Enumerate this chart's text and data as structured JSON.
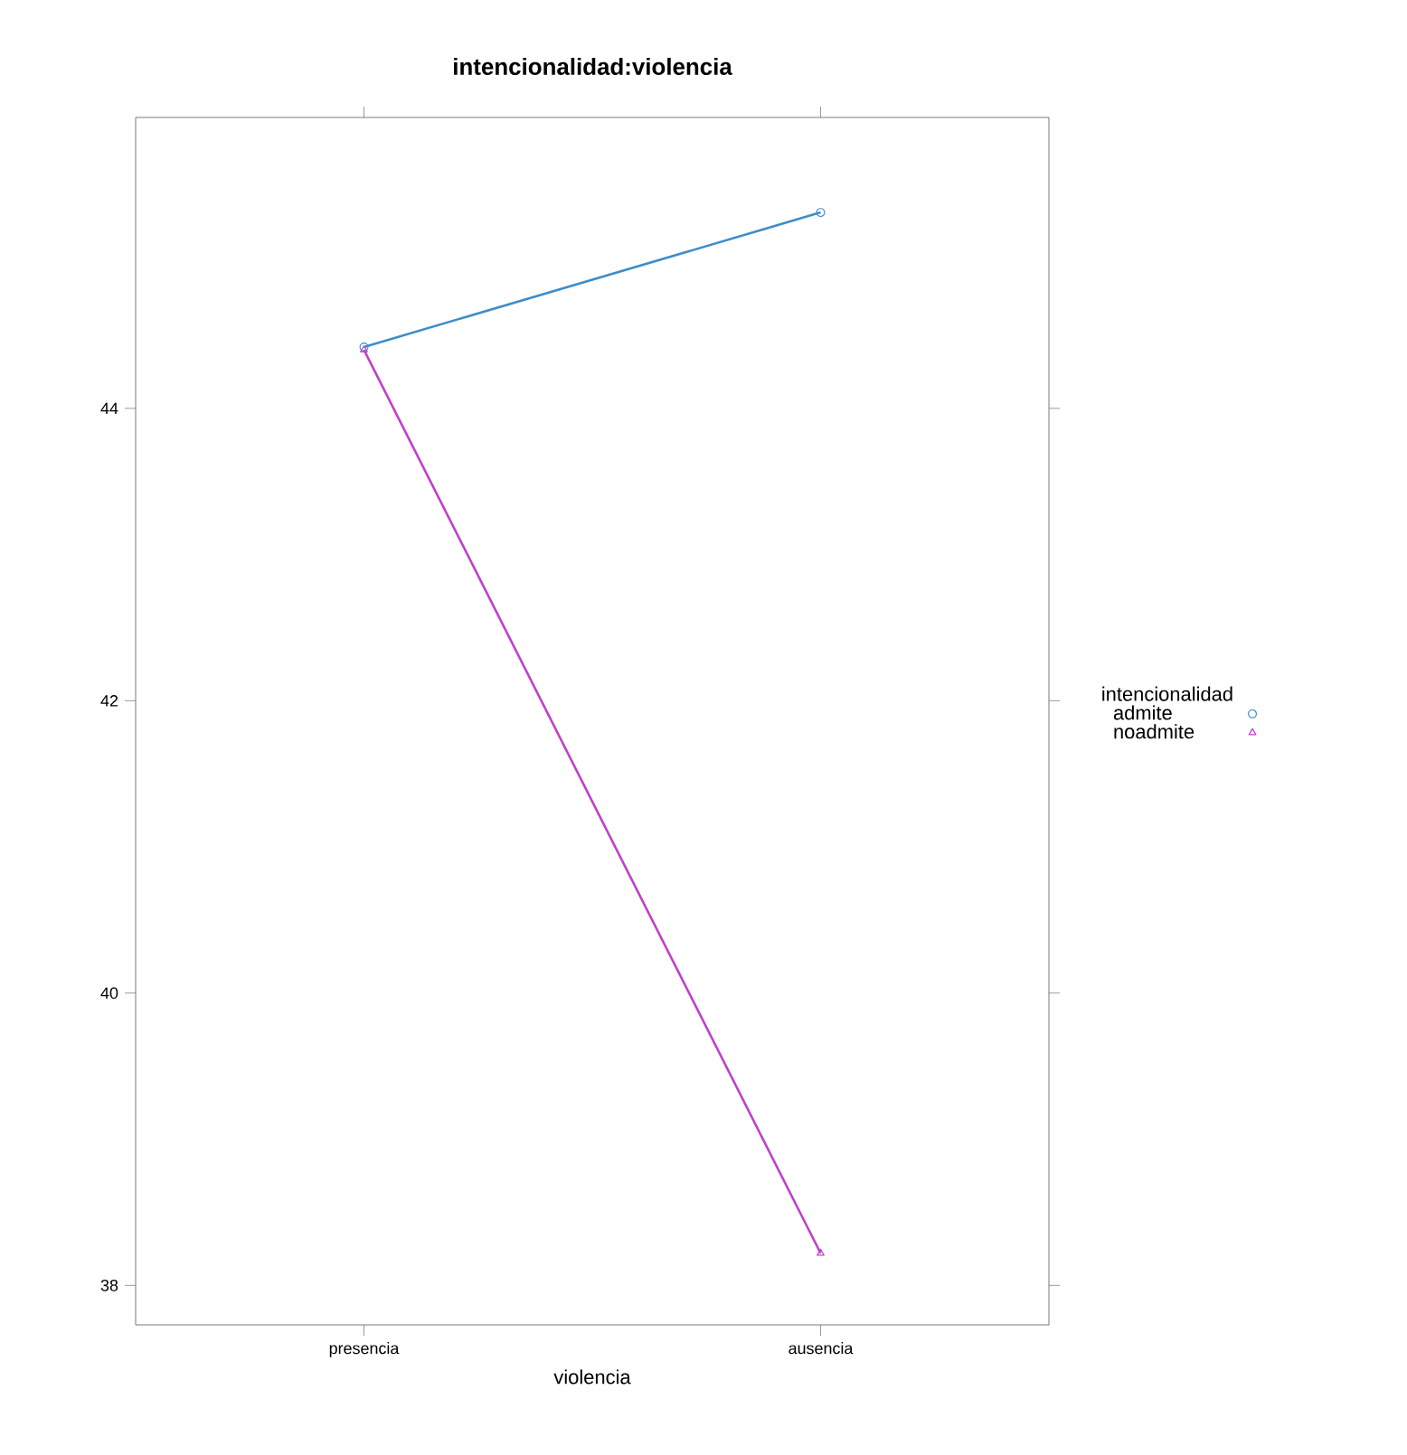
{
  "chart_data": {
    "type": "line",
    "title": "intencionalidad:violencia",
    "xlabel": "violencia",
    "legend_title": "intencionalidad",
    "categories": [
      "presencia",
      "ausencia"
    ],
    "series": [
      {
        "name": "admite",
        "color": "#3c8dc8",
        "marker": "circle",
        "values": [
          44.42,
          45.34
        ]
      },
      {
        "name": "noadmite",
        "color": "#c040c8",
        "marker": "triangle",
        "values": [
          44.4,
          38.22
        ]
      }
    ],
    "ylim": [
      37.73,
      45.99
    ],
    "yticks": [
      38,
      40,
      42,
      44
    ],
    "legend": "right"
  }
}
